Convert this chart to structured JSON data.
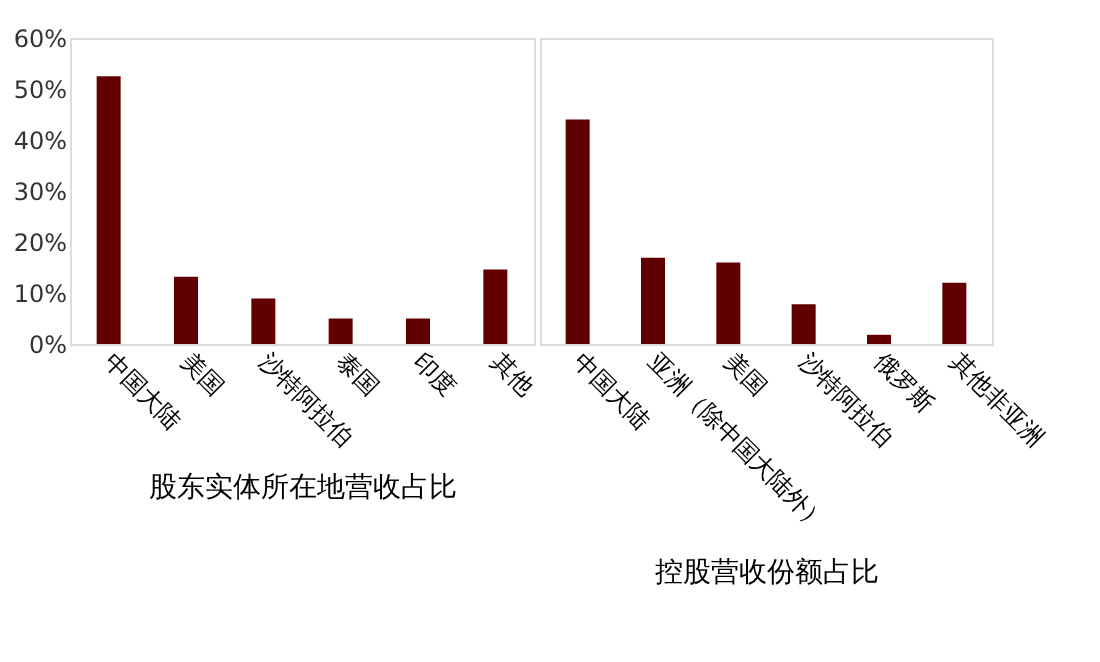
{
  "chart_data": [
    {
      "type": "bar",
      "xlabel": "股东实体所在地营收占比",
      "categories": [
        "中国大陆",
        "美国",
        "沙特阿拉伯",
        "泰国",
        "印度",
        "其他"
      ],
      "values": [
        52.5,
        13.2,
        8.9,
        5.0,
        5.0,
        14.6
      ],
      "color": "#600000",
      "ylim": [
        0,
        60
      ],
      "yticks": [
        {
          "value": 0,
          "label": "0%"
        },
        {
          "value": 10,
          "label": "10%"
        },
        {
          "value": 20,
          "label": "20%"
        },
        {
          "value": 30,
          "label": "30%"
        },
        {
          "value": 40,
          "label": "40%"
        },
        {
          "value": 50,
          "label": "50%"
        },
        {
          "value": 60,
          "label": "60%"
        }
      ],
      "grid": false
    },
    {
      "type": "bar",
      "xlabel": "控股营收份额占比",
      "categories": [
        "中国大陆",
        "亚洲（除中国大陆外）",
        "美国",
        "沙特阿拉伯",
        "俄罗斯",
        "其他非亚洲"
      ],
      "values": [
        44.0,
        16.9,
        16.0,
        7.8,
        1.8,
        12.0
      ],
      "color": "#600000",
      "ylim": [
        0,
        60
      ],
      "tick_labels": "x",
      "grid": false
    }
  ]
}
